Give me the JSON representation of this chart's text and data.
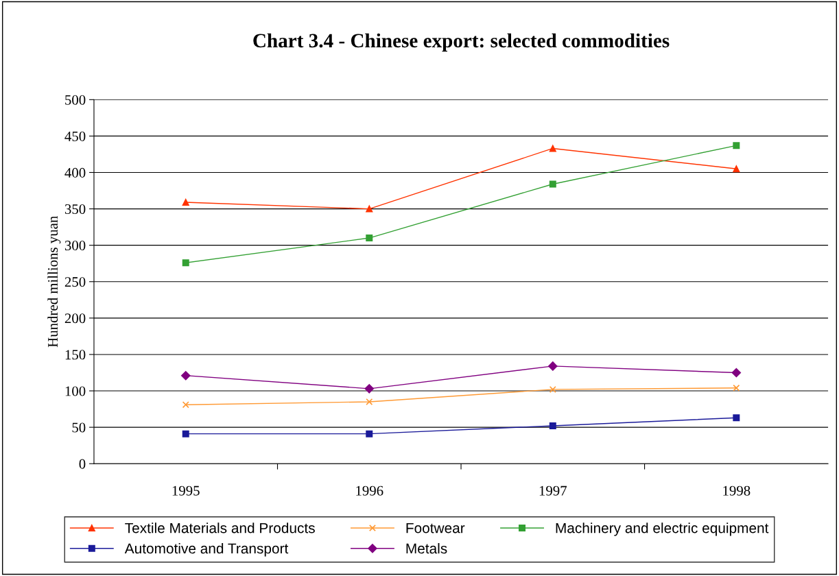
{
  "chart_data": {
    "type": "line",
    "title": "Chart 3.4 - Chinese export: selected commodities",
    "ylabel": "Hundred millions yuan",
    "categories": [
      "1995",
      "1996",
      "1997",
      "1998"
    ],
    "series": [
      {
        "name": "Textile Materials and Products",
        "color": "#ff3300",
        "marker": "triangle",
        "values": [
          359,
          350,
          433,
          405
        ]
      },
      {
        "name": "Footwear",
        "color": "#ff9933",
        "marker": "cross",
        "values": [
          81,
          85,
          102,
          104
        ]
      },
      {
        "name": "Machinery and electric equipment",
        "color": "#33a033",
        "marker": "square",
        "values": [
          276,
          310,
          384,
          437
        ]
      },
      {
        "name": "Automotive and Transport",
        "color": "#1a1a99",
        "marker": "square",
        "values": [
          41,
          41,
          52,
          63
        ]
      },
      {
        "name": "Metals",
        "color": "#800080",
        "marker": "diamond",
        "values": [
          121,
          103,
          134,
          125
        ]
      }
    ],
    "ylim": [
      0,
      500
    ],
    "yticks": [
      0,
      50,
      100,
      150,
      200,
      250,
      300,
      350,
      400,
      450,
      500
    ],
    "grid": "y",
    "legend": "bottom",
    "line_style": "solid"
  }
}
